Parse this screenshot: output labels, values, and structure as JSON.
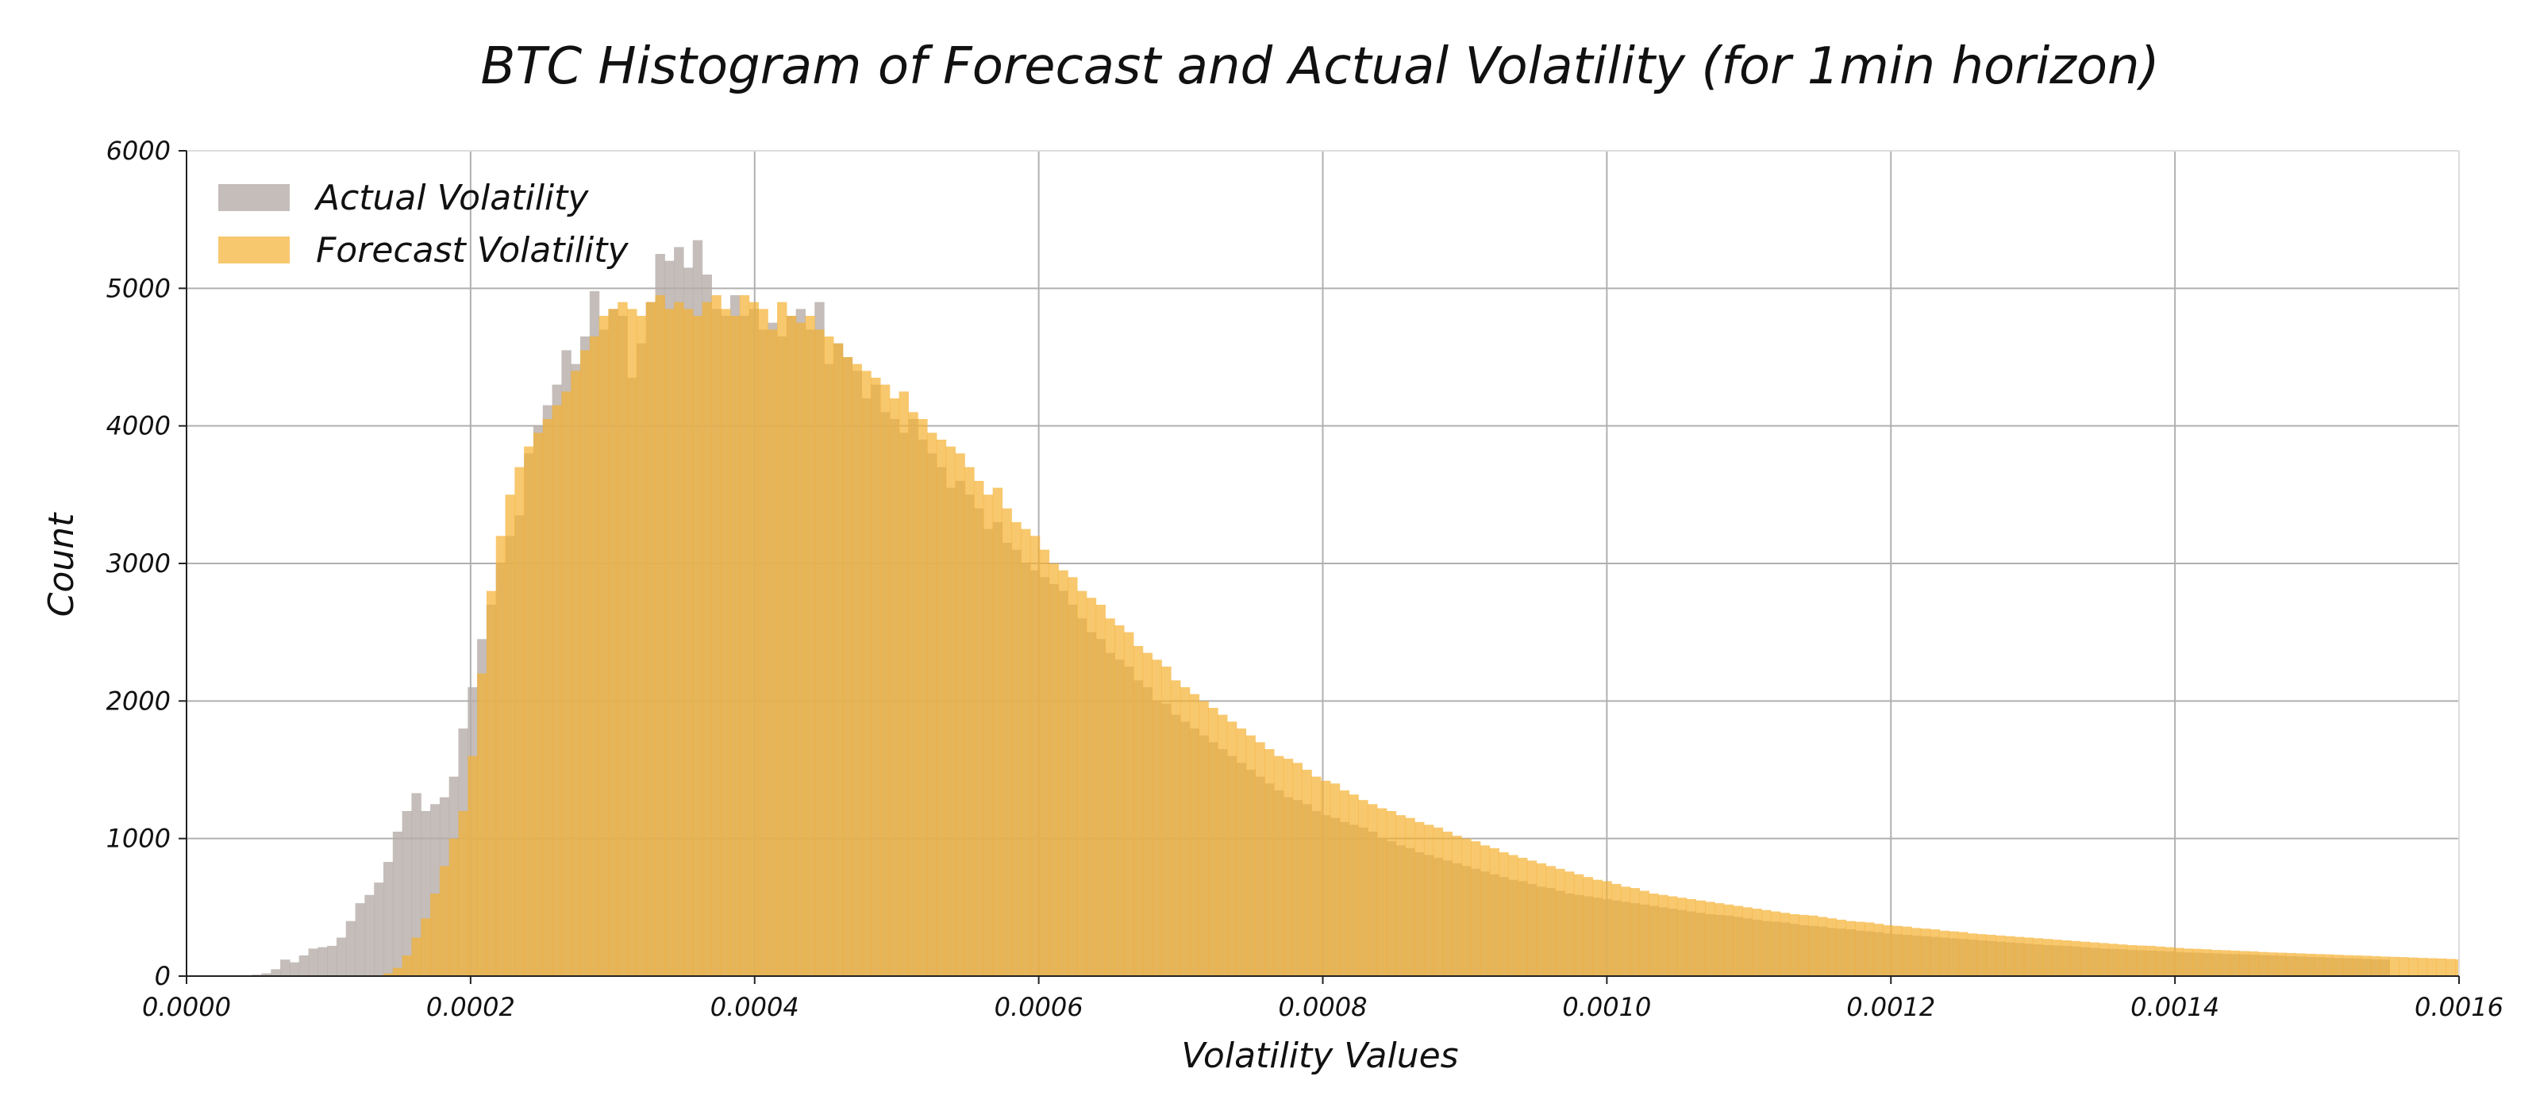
{
  "chart_data": {
    "type": "bar",
    "subtype": "histogram",
    "title": "BTC Histogram of Forecast and Actual Volatility (for 1min horizon)",
    "xlabel": "Volatility Values",
    "ylabel": "Count",
    "xlim": [
      0.0,
      0.0016
    ],
    "ylim": [
      0,
      6000
    ],
    "x_ticks": [
      0.0,
      0.0002,
      0.0004,
      0.0006,
      0.0008,
      0.001,
      0.0012,
      0.0014,
      0.0016
    ],
    "x_tick_labels": [
      "0.0000",
      "0.0002",
      "0.0004",
      "0.0006",
      "0.0008",
      "0.0010",
      "0.0012",
      "0.0014",
      "0.0016"
    ],
    "y_ticks": [
      0,
      1000,
      2000,
      3000,
      4000,
      5000,
      6000
    ],
    "y_tick_labels": [
      "0",
      "1000",
      "2000",
      "3000",
      "4000",
      "5000",
      "6000"
    ],
    "grid": true,
    "legend_position": "top-left",
    "bin_width": 6.6e-06,
    "bin_start": 0.0,
    "series": [
      {
        "name": "Actual Volatility",
        "color": "#b5aca9",
        "opacity": 0.8,
        "values": [
          0,
          0,
          0,
          0,
          0,
          0,
          0,
          10,
          20,
          50,
          120,
          100,
          150,
          200,
          210,
          220,
          280,
          400,
          530,
          590,
          680,
          830,
          1050,
          1200,
          1330,
          1200,
          1250,
          1300,
          1450,
          1800,
          2100,
          2450,
          2700,
          3000,
          3200,
          3350,
          3800,
          4000,
          4150,
          4300,
          4550,
          4450,
          4650,
          4980,
          4700,
          4850,
          4800,
          4350,
          4600,
          4900,
          5250,
          5200,
          5300,
          5150,
          5350,
          5100,
          4850,
          4800,
          4950,
          4800,
          4850,
          4700,
          4750,
          4650,
          4800,
          4850,
          4700,
          4900,
          4450,
          4600,
          4500,
          4400,
          4200,
          4300,
          4100,
          4050,
          3950,
          4050,
          3900,
          3800,
          3700,
          3550,
          3600,
          3500,
          3400,
          3250,
          3300,
          3150,
          3100,
          3000,
          2950,
          2900,
          2850,
          2800,
          2700,
          2600,
          2500,
          2450,
          2350,
          2300,
          2250,
          2150,
          2100,
          2000,
          1980,
          1900,
          1850,
          1800,
          1750,
          1700,
          1650,
          1600,
          1550,
          1500,
          1450,
          1400,
          1350,
          1300,
          1280,
          1250,
          1200,
          1170,
          1150,
          1120,
          1100,
          1080,
          1050,
          1000,
          980,
          950,
          930,
          900,
          880,
          860,
          840,
          820,
          800,
          780,
          760,
          740,
          720,
          700,
          690,
          670,
          650,
          640,
          620,
          600,
          590,
          580,
          570,
          560,
          550,
          540,
          530,
          520,
          510,
          500,
          490,
          480,
          470,
          460,
          450,
          445,
          440,
          430,
          420,
          410,
          400,
          395,
          390,
          380,
          370,
          365,
          360,
          350,
          345,
          340,
          330,
          325,
          320,
          310,
          305,
          300,
          295,
          290,
          285,
          280,
          275,
          270,
          265,
          260,
          255,
          250,
          245,
          240,
          235,
          230,
          225,
          222,
          220,
          215,
          210,
          205,
          200,
          198,
          195,
          190,
          188,
          185,
          182,
          180,
          175,
          172,
          170,
          168,
          165,
          162,
          160,
          158,
          155,
          152,
          150,
          148,
          145,
          142,
          140,
          138,
          135,
          132,
          130,
          128,
          125,
          122,
          120
        ]
      },
      {
        "name": "Forecast Volatility",
        "color": "#f5b031",
        "opacity": 0.7,
        "values": [
          0,
          0,
          0,
          0,
          0,
          0,
          0,
          0,
          0,
          0,
          0,
          0,
          0,
          0,
          0,
          0,
          0,
          0,
          0,
          0,
          5,
          20,
          60,
          150,
          280,
          420,
          600,
          800,
          1000,
          1200,
          1600,
          2200,
          2800,
          3200,
          3500,
          3700,
          3850,
          3950,
          4050,
          4150,
          4250,
          4400,
          4550,
          4650,
          4800,
          4850,
          4900,
          4850,
          4800,
          4900,
          4950,
          4850,
          4900,
          4850,
          4800,
          4900,
          4950,
          4850,
          4800,
          4950,
          4900,
          4850,
          4700,
          4900,
          4800,
          4750,
          4800,
          4700,
          4650,
          4600,
          4500,
          4450,
          4400,
          4350,
          4300,
          4200,
          4250,
          4100,
          4050,
          3950,
          3900,
          3850,
          3800,
          3700,
          3600,
          3500,
          3550,
          3400,
          3300,
          3250,
          3200,
          3100,
          3000,
          2950,
          2900,
          2800,
          2750,
          2700,
          2600,
          2550,
          2500,
          2400,
          2350,
          2300,
          2250,
          2150,
          2100,
          2050,
          2000,
          1950,
          1900,
          1850,
          1800,
          1750,
          1700,
          1650,
          1600,
          1580,
          1550,
          1500,
          1450,
          1420,
          1400,
          1350,
          1320,
          1280,
          1250,
          1220,
          1200,
          1170,
          1150,
          1120,
          1100,
          1080,
          1050,
          1020,
          1000,
          980,
          950,
          930,
          900,
          880,
          860,
          840,
          820,
          800,
          780,
          760,
          740,
          720,
          700,
          690,
          670,
          650,
          640,
          620,
          600,
          590,
          580,
          570,
          560,
          550,
          540,
          530,
          520,
          510,
          500,
          490,
          480,
          470,
          460,
          450,
          445,
          440,
          430,
          420,
          410,
          400,
          395,
          390,
          380,
          370,
          365,
          360,
          350,
          345,
          340,
          330,
          325,
          320,
          310,
          305,
          300,
          295,
          290,
          285,
          280,
          275,
          270,
          265,
          260,
          255,
          250,
          245,
          240,
          235,
          230,
          225,
          222,
          220,
          215,
          210,
          205,
          200,
          198,
          195,
          190,
          188,
          185,
          182,
          180,
          175,
          172,
          170,
          168,
          165,
          162,
          160,
          158,
          155,
          152,
          150,
          148,
          145,
          142,
          140,
          138,
          135,
          132,
          130,
          128,
          125,
          122,
          120
        ]
      }
    ]
  }
}
